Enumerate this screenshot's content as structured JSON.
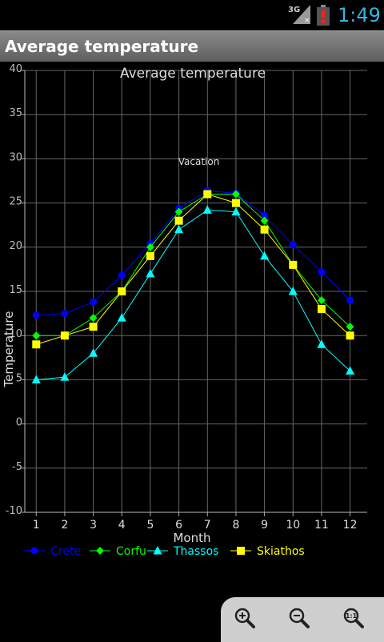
{
  "status_bar": {
    "network": "3G",
    "time": "1:49"
  },
  "app": {
    "title": "Average temperature"
  },
  "chart_data": {
    "type": "line",
    "title": "Average temperature",
    "xlabel": "Month",
    "ylabel": "Temperature",
    "x": [
      1,
      2,
      3,
      4,
      5,
      6,
      7,
      8,
      9,
      10,
      11,
      12
    ],
    "xlim": [
      0.6,
      12.6
    ],
    "ylim": [
      -10,
      40
    ],
    "yticks": [
      -10,
      -5,
      0,
      5,
      10,
      15,
      20,
      25,
      30,
      35,
      40
    ],
    "grid": true,
    "legend_position": "bottom-left",
    "annotation": {
      "text": "Vacation",
      "x": 6.7,
      "y": 29.3
    },
    "series": [
      {
        "name": "Crete",
        "color": "#0000ff",
        "marker": "circle",
        "values": [
          12.3,
          12.5,
          13.8,
          16.8,
          20.4,
          24.4,
          26.4,
          26.1,
          23.6,
          20.3,
          17.2,
          14.0
        ]
      },
      {
        "name": "Corfu",
        "color": "#00ff00",
        "marker": "diamond",
        "values": [
          10,
          10,
          12,
          15,
          20,
          24,
          26,
          26,
          23,
          18,
          14,
          11
        ]
      },
      {
        "name": "Thassos",
        "color": "#00ffff",
        "marker": "triangle",
        "values": [
          5,
          5.3,
          8,
          12,
          17,
          22,
          24.2,
          24,
          19,
          15,
          9,
          6
        ]
      },
      {
        "name": "Skiathos",
        "color": "#ffff00",
        "marker": "square",
        "values": [
          9,
          10,
          11,
          15,
          19,
          23,
          26,
          25,
          22,
          18,
          13,
          10
        ]
      }
    ]
  },
  "zoom_controls": {
    "zoom_in": "zoom-in-icon",
    "zoom_out": "zoom-out-icon",
    "zoom_reset": "zoom-reset-icon"
  }
}
